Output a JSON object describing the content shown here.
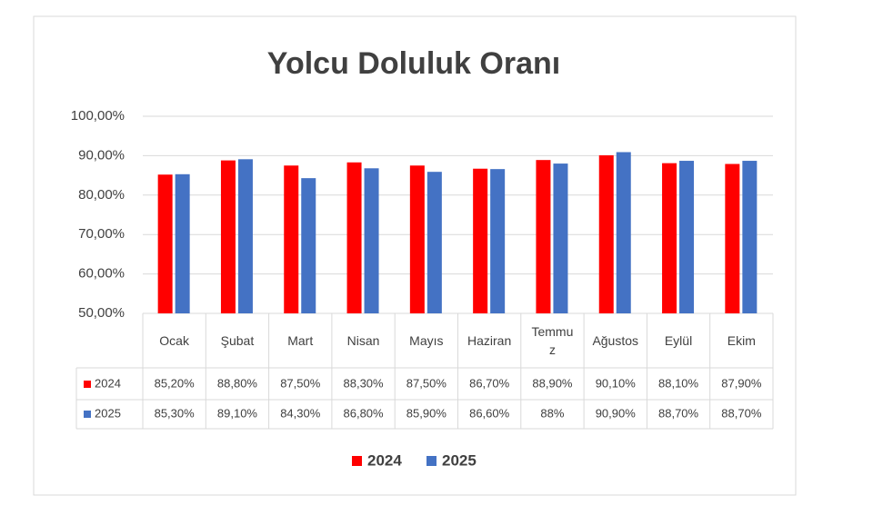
{
  "chart_data": {
    "type": "bar",
    "title": "Yolcu Doluluk Oranı",
    "categories": [
      "Ocak",
      "Şubat",
      "Mart",
      "Nisan",
      "Mayıs",
      "Haziran",
      "Temmuz",
      "Ağustos",
      "Eylül",
      "Ekim"
    ],
    "series": [
      {
        "name": "2024",
        "color": "#ff0000",
        "values": [
          85.2,
          88.8,
          87.5,
          88.3,
          87.5,
          86.7,
          88.9,
          90.1,
          88.1,
          87.9
        ],
        "value_labels": [
          "85,20%",
          "88,80%",
          "87,50%",
          "88,30%",
          "87,50%",
          "86,70%",
          "88,90%",
          "90,10%",
          "88,10%",
          "87,90%"
        ]
      },
      {
        "name": "2025",
        "color": "#4472c4",
        "values": [
          85.3,
          89.1,
          84.3,
          86.8,
          85.9,
          86.6,
          88,
          90.9,
          88.7,
          88.7
        ],
        "value_labels": [
          "85,30%",
          "89,10%",
          "84,30%",
          "86,80%",
          "85,90%",
          "86,60%",
          "88%",
          "90,90%",
          "88,70%",
          "88,70%"
        ]
      }
    ],
    "ylim": [
      50,
      100
    ],
    "yticks": [
      {
        "value": 50,
        "label": "50,00%"
      },
      {
        "value": 60,
        "label": "60,00%"
      },
      {
        "value": 70,
        "label": "70,00%"
      },
      {
        "value": 80,
        "label": "80,00%"
      },
      {
        "value": 90,
        "label": "90,00%"
      },
      {
        "value": 100,
        "label": "100,00%"
      }
    ],
    "grid": true
  }
}
